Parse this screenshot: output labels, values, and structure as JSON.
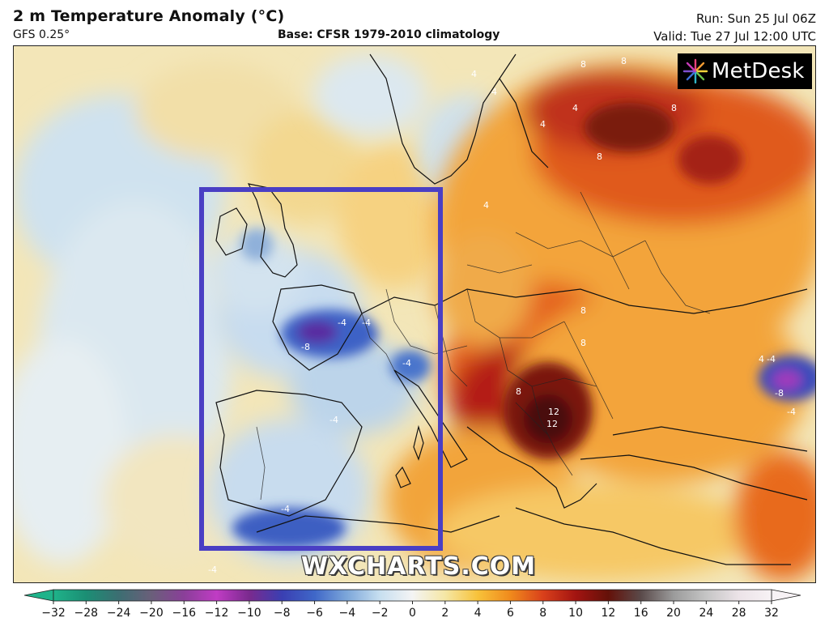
{
  "header": {
    "title": "2 m Temperature Anomaly (°C)",
    "model": "GFS 0.25°",
    "base": "Base: CFSR 1979-2010 climatology",
    "run": "Run: Sun 25 Jul 06Z",
    "valid": "Valid: Tue 27 Jul 12:00 UTC"
  },
  "logo": {
    "text": "MetDesk",
    "icon": "metdesk-burst-icon"
  },
  "watermark": "WXCHARTS.COM",
  "colorbar": {
    "ticks": [
      "−32",
      "−28",
      "−24",
      "−20",
      "−16",
      "−12",
      "−10",
      "−8",
      "−6",
      "−4",
      "−2",
      "0",
      "2",
      "4",
      "6",
      "8",
      "10",
      "12",
      "16",
      "20",
      "24",
      "28",
      "32"
    ],
    "colors": [
      "#1fb38a",
      "#1b8e74",
      "#3c6e72",
      "#6a5f7a",
      "#8a3f99",
      "#c03cc4",
      "#7a2a8e",
      "#3a3fb2",
      "#3f67c8",
      "#7da7da",
      "#c7dff0",
      "#f4f4f4",
      "#f5e7a5",
      "#f7c23a",
      "#f08a1c",
      "#d9401b",
      "#a31411",
      "#641109",
      "#5a4a4a",
      "#9b9b9b",
      "#c5c5c5",
      "#ece3e8",
      "#f7f2f5"
    ]
  },
  "map": {
    "highlight_box_color": "#4a3fc4",
    "contour_labels": [
      "4",
      "4",
      "8",
      "8",
      "8",
      "4",
      "4",
      "8",
      "8",
      "4",
      "-4",
      "-8",
      "-4",
      "-4",
      "-4",
      "8",
      "8",
      "12",
      "12",
      "-4",
      "-8",
      "-4",
      "4",
      "-4",
      "-4"
    ]
  }
}
